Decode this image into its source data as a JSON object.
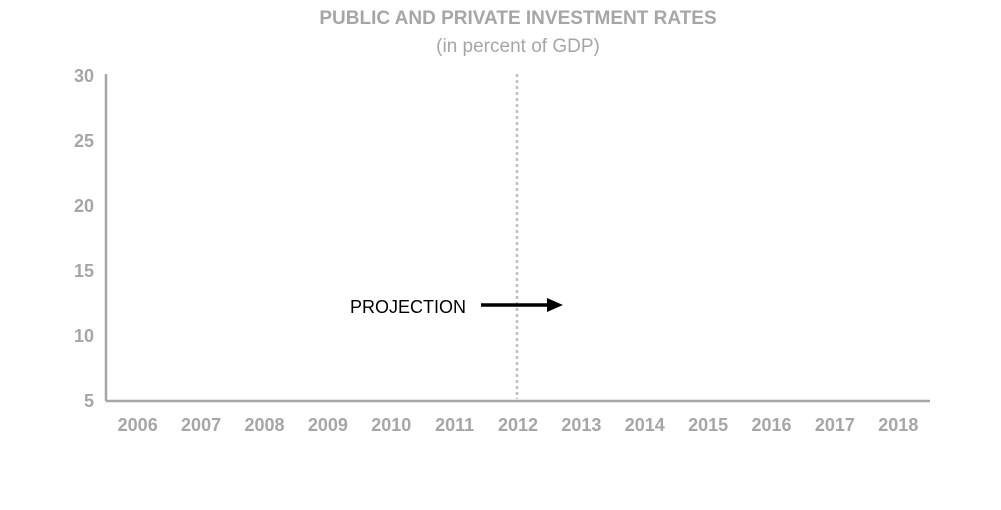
{
  "chart_data": {
    "type": "line",
    "title": "PUBLIC AND PRIVATE INVESTMENT RATES",
    "subtitle": "(in percent of GDP)",
    "xlabel": "",
    "ylabel": "",
    "categories": [
      "2006",
      "2007",
      "2008",
      "2009",
      "2010",
      "2011",
      "2012",
      "2013",
      "2014",
      "2015",
      "2016",
      "2017",
      "2018"
    ],
    "ylim": [
      5,
      30
    ],
    "yticks": [
      5,
      10,
      15,
      20,
      25,
      30
    ],
    "series": [],
    "grid": false,
    "projection": {
      "label": "PROJECTION",
      "start_category": "2012",
      "line_style": "dotted"
    },
    "colors": {
      "axis": "#a6a6a6",
      "text": "#a6a6a6",
      "projection_line": "#bfbfbf",
      "annotation": "#000000"
    }
  }
}
